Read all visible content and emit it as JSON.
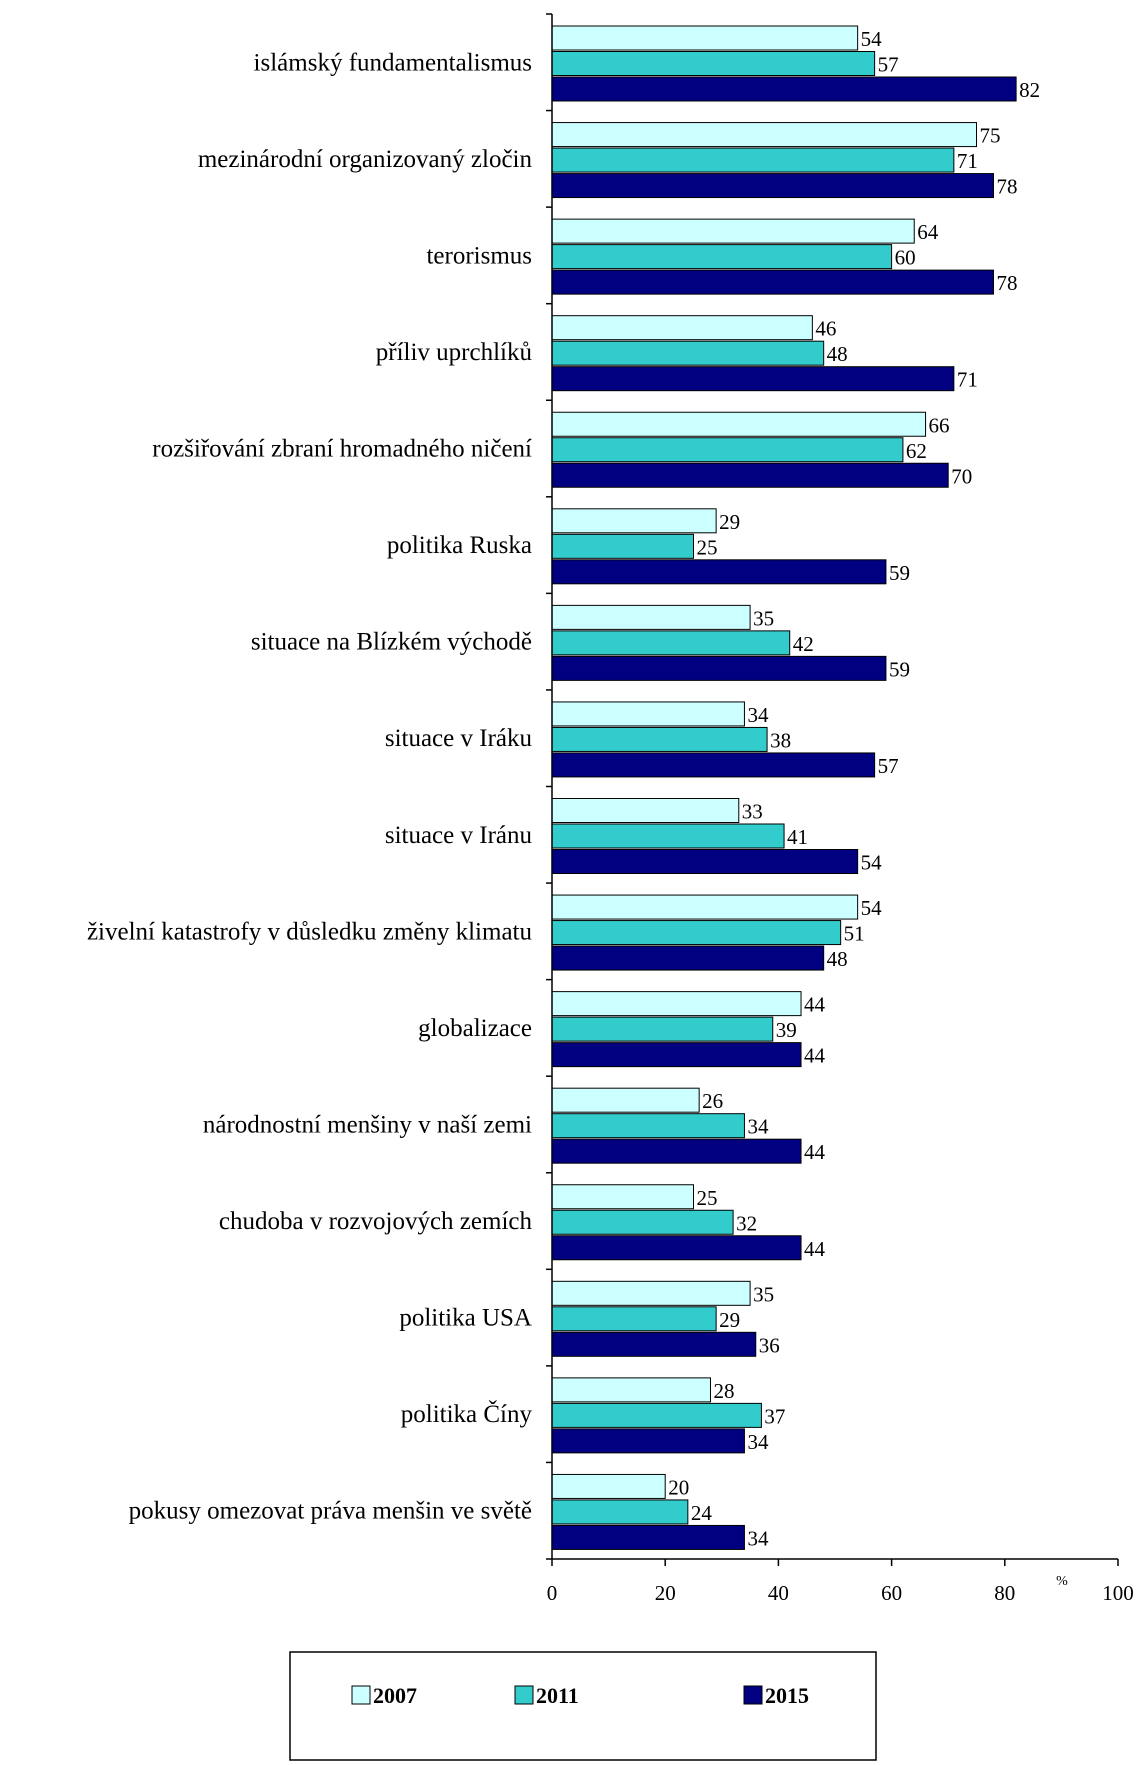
{
  "chart_data": {
    "type": "bar",
    "orientation": "horizontal",
    "categories": [
      "islámský fundamentalismus",
      "mezinárodní organizovaný zločin",
      "terorismus",
      "příliv uprchlíků",
      "rozšiřování zbraní hromadného ničení",
      "politika Ruska",
      "situace na Blízkém východě",
      "situace v Iráku",
      "situace v Iránu",
      "živelní katastrofy v důsledku změny klimatu",
      "globalizace",
      "národnostní menšiny v naší zemi",
      "chudoba v rozvojových zemích",
      "politika USA",
      "politika Číny",
      "pokusy omezovat práva menšin ve světě"
    ],
    "series": [
      {
        "name": "2007",
        "color": "#ccffff",
        "values": [
          54,
          75,
          64,
          46,
          66,
          29,
          35,
          34,
          33,
          54,
          44,
          26,
          25,
          35,
          28,
          20
        ]
      },
      {
        "name": "2011",
        "color": "#33cccc",
        "values": [
          57,
          71,
          60,
          48,
          62,
          25,
          42,
          38,
          41,
          51,
          39,
          34,
          32,
          29,
          37,
          24
        ]
      },
      {
        "name": "2015",
        "color": "#000080",
        "values": [
          82,
          78,
          78,
          71,
          70,
          59,
          59,
          57,
          54,
          48,
          44,
          44,
          44,
          36,
          34,
          34
        ]
      }
    ],
    "xlim": [
      0,
      100
    ],
    "xticks": [
      0,
      20,
      40,
      60,
      80,
      100
    ],
    "x_unit": "%",
    "grid": false,
    "legend_position": "bottom"
  }
}
